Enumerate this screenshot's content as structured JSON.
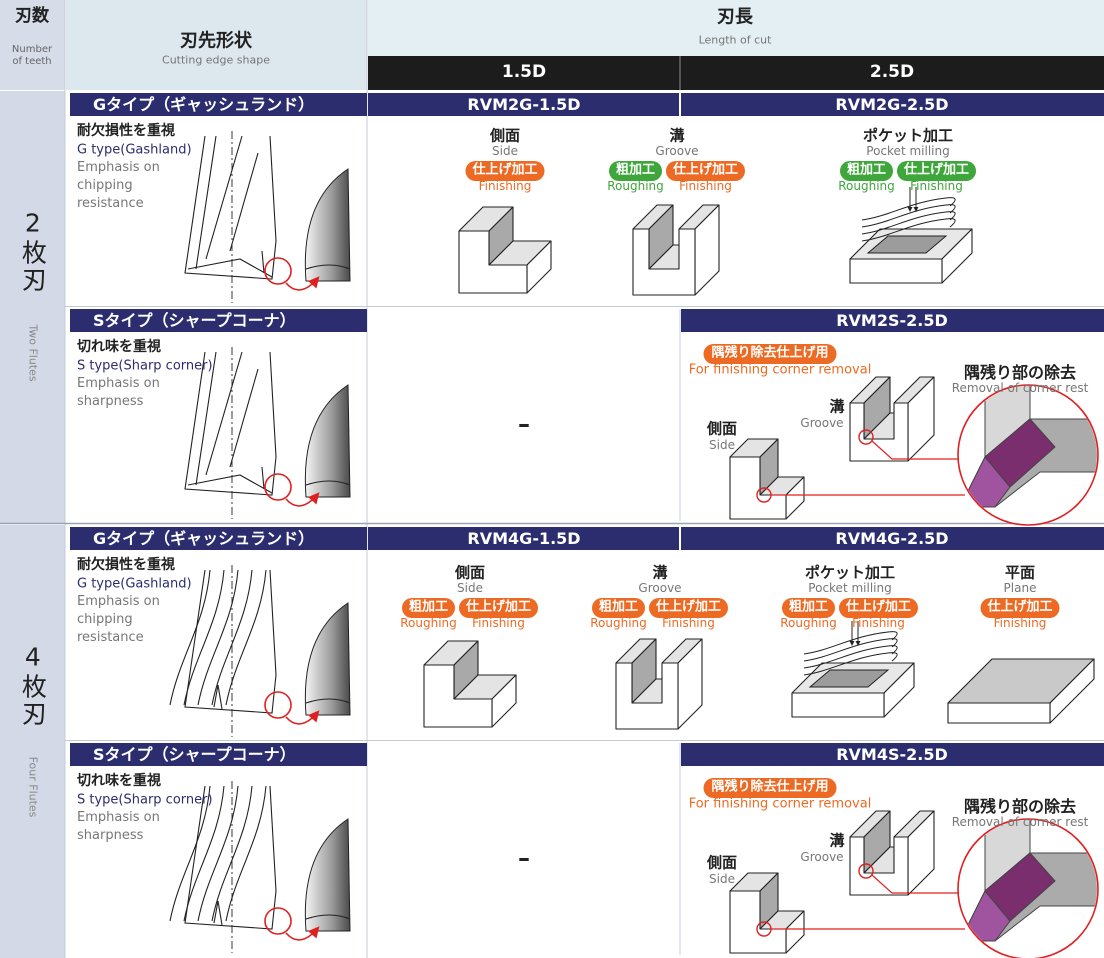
{
  "header": {
    "teeth_jp": "刃数",
    "teeth_en": "Number of teeth",
    "shape_jp": "刃先形状",
    "shape_en": "Cutting edge shape",
    "length_jp": "刃長",
    "length_en": "Length of cut",
    "length_cols": [
      "1.5D",
      "2.5D"
    ]
  },
  "sections": [
    {
      "flutes_jp": "2枚刃",
      "flutes_en": "Two Flutes",
      "rows": [
        {
          "type_label": "Gタイプ（ギャッシュランド）",
          "emphasis_jp": "耐欠損性を重視",
          "type_en": "G type(Gashland)",
          "emphasis_en": "Emphasis on chipping resistance",
          "models": [
            "RVM2G-1.5D",
            "RVM2G-2.5D"
          ],
          "operations": [
            {
              "title": "側面",
              "subtitle": "Side",
              "badges": [
                {
                  "text": "仕上げ加工",
                  "label": "Finishing",
                  "color": "#ec6a23"
                }
              ]
            },
            {
              "title": "溝",
              "subtitle": "Groove",
              "badges": [
                {
                  "text": "粗加工",
                  "label": "Roughing",
                  "color": "#3fa63b"
                },
                {
                  "text": "仕上げ加工",
                  "label": "Finishing",
                  "color": "#ec6a23"
                }
              ]
            },
            {
              "title": "ポケット加工",
              "subtitle": "Pocket milling",
              "badges": [
                {
                  "text": "粗加工",
                  "label": "Roughing",
                  "color": "#3fa63b"
                },
                {
                  "text": "仕上げ加工",
                  "label": "Finishing",
                  "color": "#3fa63b"
                }
              ]
            }
          ]
        },
        {
          "type_label": "Sタイプ（シャープコーナ）",
          "emphasis_jp": "切れ味を重視",
          "type_en": "S type(Sharp corner)",
          "emphasis_en": "Emphasis on sharpness",
          "models": [
            "RVM2S-2.5D"
          ],
          "dash": "–",
          "corner": {
            "badge": "隅残り除去仕上げ用",
            "badge_en": "For finishing corner removal",
            "side_jp": "側面",
            "side_en": "Side",
            "groove_jp": "溝",
            "groove_en": "Groove",
            "removal_jp": "隅残り部の除去",
            "removal_en": "Removal of corner rest"
          }
        }
      ]
    },
    {
      "flutes_jp": "4枚刃",
      "flutes_en": "Four Flutes",
      "rows": [
        {
          "type_label": "Gタイプ（ギャッシュランド）",
          "emphasis_jp": "耐欠損性を重視",
          "type_en": "G type(Gashland)",
          "emphasis_en": "Emphasis on chipping resistance",
          "models": [
            "RVM4G-1.5D",
            "RVM4G-2.5D"
          ],
          "operations": [
            {
              "title": "側面",
              "subtitle": "Side",
              "badges": [
                {
                  "text": "粗加工",
                  "label": "Roughing",
                  "color": "#ec6a23"
                },
                {
                  "text": "仕上げ加工",
                  "label": "Finishing",
                  "color": "#ec6a23"
                }
              ]
            },
            {
              "title": "溝",
              "subtitle": "Groove",
              "badges": [
                {
                  "text": "粗加工",
                  "label": "Roughing",
                  "color": "#ec6a23"
                },
                {
                  "text": "仕上げ加工",
                  "label": "Finishing",
                  "color": "#ec6a23"
                }
              ]
            },
            {
              "title": "ポケット加工",
              "subtitle": "Pocket milling",
              "badges": [
                {
                  "text": "粗加工",
                  "label": "Roughing",
                  "color": "#ec6a23"
                },
                {
                  "text": "仕上げ加工",
                  "label": "Finishing",
                  "color": "#ec6a23"
                }
              ]
            },
            {
              "title": "平面",
              "subtitle": "Plane",
              "badges": [
                {
                  "text": "仕上げ加工",
                  "label": "Finishing",
                  "color": "#ec6a23"
                }
              ]
            }
          ]
        },
        {
          "type_label": "Sタイプ（シャープコーナ）",
          "emphasis_jp": "切れ味を重視",
          "type_en": "S type(Sharp corner)",
          "emphasis_en": "Emphasis on sharpness",
          "models": [
            "RVM4S-2.5D"
          ],
          "dash": "–",
          "corner": {
            "badge": "隅残り除去仕上げ用",
            "badge_en": "For finishing corner removal",
            "side_jp": "側面",
            "side_en": "Side",
            "groove_jp": "溝",
            "groove_en": "Groove",
            "removal_jp": "隅残り部の除去",
            "removal_en": "Removal of corner rest"
          }
        }
      ]
    }
  ]
}
